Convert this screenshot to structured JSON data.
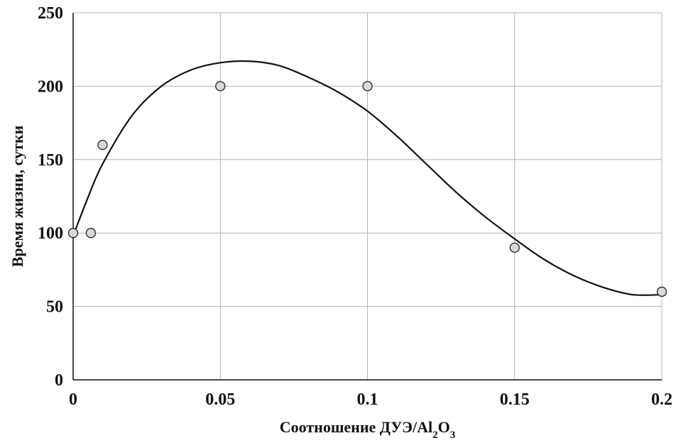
{
  "chart_data": {
    "type": "scatter",
    "title": "",
    "xlabel": "Соотношение ДУЭ/Al",
    "xlabel_sub1": "2",
    "xlabel_mid": "O",
    "xlabel_sub2": "3",
    "ylabel": "Время жизни, сутки",
    "xlim": [
      0,
      0.2
    ],
    "ylim": [
      0,
      250
    ],
    "x_ticks": [
      {
        "value": 0,
        "label": "0"
      },
      {
        "value": 0.05,
        "label": "0.05"
      },
      {
        "value": 0.1,
        "label": "0.1"
      },
      {
        "value": 0.15,
        "label": "0.15"
      },
      {
        "value": 0.2,
        "label": "0.2"
      }
    ],
    "y_ticks": [
      {
        "value": 0,
        "label": "0"
      },
      {
        "value": 50,
        "label": "50"
      },
      {
        "value": 100,
        "label": "100"
      },
      {
        "value": 150,
        "label": "150"
      },
      {
        "value": 200,
        "label": "200"
      },
      {
        "value": 250,
        "label": "250"
      }
    ],
    "grid": true,
    "series": [
      {
        "points": [
          {
            "x": 0,
            "y": 100
          },
          {
            "x": 0.006,
            "y": 100
          },
          {
            "x": 0.01,
            "y": 160
          },
          {
            "x": 0.05,
            "y": 200
          },
          {
            "x": 0.1,
            "y": 200
          },
          {
            "x": 0.15,
            "y": 90
          },
          {
            "x": 0.2,
            "y": 60
          }
        ]
      }
    ],
    "trendline": {
      "points": [
        {
          "x": 0,
          "y": 98
        },
        {
          "x": 0.005,
          "y": 124
        },
        {
          "x": 0.01,
          "y": 147
        },
        {
          "x": 0.02,
          "y": 180
        },
        {
          "x": 0.03,
          "y": 200
        },
        {
          "x": 0.04,
          "y": 211
        },
        {
          "x": 0.05,
          "y": 216
        },
        {
          "x": 0.06,
          "y": 217
        },
        {
          "x": 0.07,
          "y": 214
        },
        {
          "x": 0.08,
          "y": 206
        },
        {
          "x": 0.09,
          "y": 196
        },
        {
          "x": 0.1,
          "y": 183
        },
        {
          "x": 0.11,
          "y": 166
        },
        {
          "x": 0.12,
          "y": 147
        },
        {
          "x": 0.13,
          "y": 128
        },
        {
          "x": 0.14,
          "y": 111
        },
        {
          "x": 0.15,
          "y": 96
        },
        {
          "x": 0.16,
          "y": 82
        },
        {
          "x": 0.17,
          "y": 71
        },
        {
          "x": 0.18,
          "y": 63
        },
        {
          "x": 0.19,
          "y": 58
        },
        {
          "x": 0.2,
          "y": 58
        }
      ]
    }
  }
}
